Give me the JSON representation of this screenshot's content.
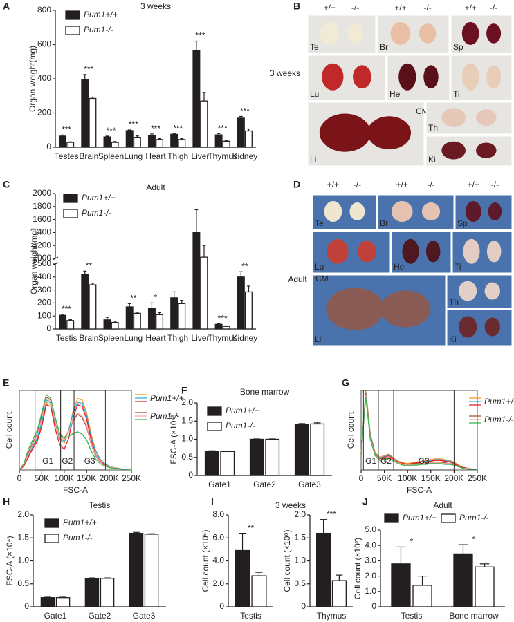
{
  "panel_labels": [
    "A",
    "B",
    "C",
    "D",
    "E",
    "F",
    "G",
    "H",
    "I",
    "J"
  ],
  "photos": [
    {
      "caption": "3 weeks",
      "tiles": [
        {
          "label": "Te",
          "genotypes": [
            "+/+",
            "-/-"
          ]
        },
        {
          "label": "Br",
          "genotypes": [
            "+/+",
            "-/-"
          ]
        },
        {
          "label": "Sp",
          "genotypes": [
            "+/+",
            "-/-"
          ]
        },
        {
          "label": "Lu"
        },
        {
          "label": "He"
        },
        {
          "label": "Ti"
        },
        {
          "label": "Li",
          "ruler": "CM"
        },
        {
          "label": "Th"
        },
        {
          "label": "Ki"
        }
      ]
    },
    {
      "caption": "Adult",
      "tiles": [
        {
          "label": "Te",
          "genotypes": [
            "+/+",
            "-/-"
          ]
        },
        {
          "label": "Br",
          "genotypes": [
            "+/+",
            "-/-"
          ]
        },
        {
          "label": "Sp",
          "genotypes": [
            "+/+",
            "-/-"
          ]
        },
        {
          "label": "Lu"
        },
        {
          "label": "He"
        },
        {
          "label": "Ti"
        },
        {
          "label": "Li",
          "ruler": "CM"
        },
        {
          "label": "Th"
        },
        {
          "label": "Ki"
        }
      ]
    }
  ],
  "chart_data": [
    {
      "type": "bar",
      "title": "3 weeks",
      "y_label": "Organ weight(mg)",
      "categories": [
        "Testes",
        "Brain",
        "Spleen",
        "Lung",
        "Heart",
        "Thigh",
        "Liver",
        "Thymus",
        "Kidney"
      ],
      "series": [
        {
          "name": "Pum1+/+",
          "color": "#231f20",
          "values": [
            65,
            395,
            60,
            97,
            70,
            75,
            565,
            72,
            170
          ],
          "errors": [
            6,
            30,
            5,
            4,
            7,
            5,
            55,
            8,
            10
          ]
        },
        {
          "name": "Pum1-/-",
          "color": "#ffffff",
          "values": [
            28,
            285,
            28,
            58,
            45,
            45,
            270,
            35,
            95
          ],
          "errors": [
            3,
            8,
            5,
            8,
            5,
            5,
            50,
            5,
            12
          ]
        }
      ],
      "annotations": [
        "***",
        "***",
        "***",
        "***",
        "***",
        "***",
        "***",
        "***",
        "***"
      ],
      "ylim": [
        0,
        800
      ],
      "yticks": [
        0,
        200,
        400,
        600,
        800
      ],
      "legend": "upper left"
    },
    {
      "type": "bar",
      "title": "Adult",
      "y_label": "Organ weight(mg)",
      "categories": [
        "Testis",
        "Brain",
        "Spleen",
        "Lung",
        "Heart",
        "Thigh",
        "Liver",
        "Thymus",
        "Kidney"
      ],
      "series": [
        {
          "name": "Pum1+/+",
          "color": "#231f20",
          "values": [
            105,
            420,
            70,
            170,
            160,
            240,
            1400,
            35,
            400
          ],
          "errors": [
            8,
            25,
            20,
            25,
            40,
            45,
            350,
            5,
            40
          ]
        },
        {
          "name": "Pum1-/-",
          "color": "#ffffff",
          "values": [
            65,
            340,
            50,
            120,
            110,
            195,
            1020,
            20,
            285
          ],
          "errors": [
            6,
            12,
            10,
            3,
            15,
            25,
            180,
            4,
            45
          ]
        }
      ],
      "annotations": [
        "***",
        "**",
        null,
        "**",
        "*",
        null,
        null,
        "***",
        "**"
      ],
      "ylim": [
        0,
        2000
      ],
      "ybreak": [
        500,
        1000
      ],
      "yticks": [
        0,
        100,
        200,
        300,
        400,
        500,
        1000,
        1200,
        1400,
        1600,
        1800,
        2000
      ],
      "legend": "upper left"
    },
    {
      "type": "line",
      "x_label": "FSC-A",
      "y_label": "Cell count",
      "x": [
        0,
        10000,
        20000,
        30000,
        40000,
        50000,
        60000,
        70000,
        80000,
        90000,
        100000,
        110000,
        120000,
        130000,
        140000,
        150000,
        160000,
        170000,
        180000,
        190000,
        200000,
        210000,
        220000,
        230000,
        240000,
        250000
      ],
      "series": [
        {
          "name": "Pum1+/+",
          "color": "#f7941d",
          "values": [
            0,
            6,
            18,
            28,
            38,
            58,
            85,
            82,
            58,
            38,
            34,
            50,
            75,
            90,
            88,
            72,
            45,
            25,
            14,
            8,
            5,
            3,
            2,
            1,
            1,
            0
          ]
        },
        {
          "name": "Pum1+/+",
          "color": "#29abe2",
          "values": [
            0,
            6,
            18,
            30,
            40,
            60,
            88,
            84,
            60,
            40,
            36,
            50,
            72,
            85,
            84,
            68,
            42,
            24,
            13,
            8,
            5,
            3,
            2,
            1,
            1,
            0
          ]
        },
        {
          "name": "Pum1+/+",
          "color": "#ed1c24",
          "values": [
            0,
            5,
            16,
            27,
            36,
            55,
            82,
            80,
            52,
            32,
            26,
            40,
            66,
            82,
            80,
            64,
            38,
            20,
            11,
            7,
            4,
            3,
            2,
            1,
            1,
            0
          ]
        },
        {
          "name": "Pum1-/-",
          "color": "#a0522d",
          "values": [
            0,
            7,
            22,
            34,
            46,
            68,
            92,
            88,
            64,
            44,
            40,
            48,
            62,
            70,
            66,
            54,
            33,
            18,
            10,
            6,
            4,
            3,
            2,
            1,
            1,
            0
          ]
        },
        {
          "name": "Pum1-/-",
          "color": "#f4a6a6",
          "values": [
            0,
            7,
            20,
            32,
            44,
            65,
            90,
            86,
            62,
            42,
            38,
            48,
            64,
            72,
            68,
            56,
            34,
            19,
            10,
            6,
            4,
            3,
            2,
            1,
            1,
            0
          ]
        },
        {
          "name": "Pum1-/-",
          "color": "#39b54a",
          "values": [
            0,
            8,
            26,
            38,
            50,
            72,
            95,
            90,
            66,
            46,
            40,
            42,
            46,
            48,
            45,
            38,
            24,
            14,
            8,
            5,
            3,
            2,
            2,
            1,
            1,
            0
          ]
        }
      ],
      "gates": [
        {
          "label": "G1",
          "range": [
            35000,
            92000
          ]
        },
        {
          "label": "G2",
          "range": [
            92000,
            122000
          ]
        },
        {
          "label": "G3",
          "range": [
            122000,
            192000
          ]
        }
      ],
      "xlim": [
        0,
        250000
      ],
      "ylim": [
        0,
        100
      ],
      "xticks": [
        0,
        {
          "value": 50000,
          "label": "50K"
        },
        {
          "value": 100000,
          "label": "100K"
        },
        {
          "value": 150000,
          "label": "150K"
        },
        {
          "value": 200000,
          "label": "200K"
        },
        {
          "value": 250000,
          "label": "250K"
        }
      ],
      "legend": "right"
    },
    {
      "type": "bar",
      "title": "Bone marrow",
      "y_label": "FSC-A (×10⁴)",
      "categories": [
        "Gate1",
        "Gate2",
        "Gate3"
      ],
      "series": [
        {
          "name": "Pum1+/+",
          "color": "#231f20",
          "values": [
            0.66,
            1.0,
            1.4
          ],
          "errors": [
            0.02,
            0.01,
            0.03
          ]
        },
        {
          "name": "Pum1-/-",
          "color": "#ffffff",
          "values": [
            0.66,
            1.0,
            1.42
          ],
          "errors": [
            0.01,
            0.01,
            0.03
          ]
        }
      ],
      "ylim": [
        0,
        2
      ],
      "yticks": [
        0,
        0.5,
        {
          "value": 1,
          "label": "1.0"
        },
        1.5,
        {
          "value": 2,
          "label": "2.0"
        }
      ],
      "legend": "upper left"
    },
    {
      "type": "line",
      "x_label": "FSC-A",
      "y_label": "Cell count",
      "x": [
        0,
        10000,
        20000,
        30000,
        40000,
        50000,
        60000,
        70000,
        80000,
        90000,
        100000,
        110000,
        120000,
        130000,
        140000,
        150000,
        160000,
        170000,
        180000,
        190000,
        200000,
        210000,
        220000,
        230000,
        240000,
        250000
      ],
      "series": [
        {
          "name": "Pum1+/+",
          "color": "#f7941d",
          "values": [
            20,
            100,
            45,
            22,
            16,
            18,
            20,
            15,
            11,
            9,
            8,
            9,
            10,
            11,
            12,
            13,
            14,
            14,
            13,
            12,
            10,
            6,
            3,
            2,
            1,
            1
          ]
        },
        {
          "name": "Pum1+/+",
          "color": "#29abe2",
          "values": [
            20,
            98,
            44,
            21,
            15,
            17,
            19,
            14,
            10,
            8,
            7,
            8,
            9,
            10,
            11,
            12,
            13,
            13,
            12,
            11,
            9,
            5,
            3,
            2,
            1,
            1
          ]
        },
        {
          "name": "Pum1+/+",
          "color": "#ed1c24",
          "values": [
            20,
            96,
            42,
            20,
            14,
            16,
            18,
            13,
            10,
            8,
            7,
            8,
            9,
            10,
            10,
            11,
            12,
            12,
            11,
            10,
            8,
            5,
            3,
            2,
            1,
            1
          ]
        },
        {
          "name": "Pum1-/-",
          "color": "#a0522d",
          "values": [
            20,
            95,
            40,
            19,
            13,
            14,
            16,
            12,
            9,
            7,
            6,
            7,
            8,
            8,
            9,
            9,
            10,
            10,
            9,
            8,
            7,
            4,
            2,
            2,
            1,
            1
          ]
        },
        {
          "name": "Pum1-/-",
          "color": "#f4a6a6",
          "values": [
            20,
            94,
            40,
            19,
            13,
            15,
            17,
            12,
            9,
            7,
            6,
            7,
            7,
            8,
            8,
            9,
            9,
            9,
            8,
            8,
            6,
            4,
            2,
            2,
            1,
            1
          ]
        },
        {
          "name": "Pum1-/-",
          "color": "#39b54a",
          "values": [
            20,
            92,
            38,
            18,
            12,
            13,
            15,
            11,
            8,
            6,
            5,
            6,
            6,
            7,
            7,
            8,
            8,
            8,
            7,
            7,
            6,
            4,
            2,
            1,
            1,
            1
          ]
        }
      ],
      "gates": [
        {
          "label": "G1",
          "range": [
            5000,
            37000
          ]
        },
        {
          "label": "G2",
          "range": [
            37000,
            70000
          ]
        },
        {
          "label": "G3",
          "range": [
            70000,
            200000
          ]
        }
      ],
      "xlim": [
        0,
        250000
      ],
      "ylim": [
        0,
        100
      ],
      "xticks": [
        0,
        {
          "value": 50000,
          "label": "50K"
        },
        {
          "value": 100000,
          "label": "100K"
        },
        {
          "value": 150000,
          "label": "150K"
        },
        {
          "value": 200000,
          "label": "200K"
        },
        {
          "value": 250000,
          "label": "250K"
        }
      ],
      "legend": "right"
    },
    {
      "type": "bar",
      "title": "Testis",
      "y_label": "FSC-A (×10⁴)",
      "categories": [
        "Gate1",
        "Gate2",
        "Gate3"
      ],
      "series": [
        {
          "name": "Pum1+/+",
          "color": "#231f20",
          "values": [
            0.2,
            0.62,
            1.6
          ],
          "errors": [
            0.01,
            0.01,
            0.02
          ]
        },
        {
          "name": "Pum1-/-",
          "color": "#ffffff",
          "values": [
            0.2,
            0.62,
            1.58
          ],
          "errors": [
            0.01,
            0.01,
            0.01
          ]
        }
      ],
      "ylim": [
        0,
        2
      ],
      "yticks": [
        0,
        0.5,
        {
          "value": 1,
          "label": "1.0"
        },
        1.5,
        {
          "value": 2,
          "label": "2.0"
        }
      ],
      "legend": "upper left"
    },
    {
      "type": "bar",
      "title": "3 weeks",
      "y_label": "Cell count (×10⁶)",
      "categories": [
        "Testis"
      ],
      "series": [
        {
          "color": "#231f20",
          "values": [
            4.9
          ],
          "errors": [
            1.5
          ]
        },
        {
          "color": "#ffffff",
          "values": [
            2.7
          ],
          "errors": [
            0.3
          ]
        }
      ],
      "annotations": [
        "**"
      ],
      "ylim": [
        0,
        8
      ],
      "yticks": [
        0,
        {
          "value": 2,
          "label": "2.0"
        },
        {
          "value": 4,
          "label": "4.0"
        },
        {
          "value": 6,
          "label": "6.0"
        },
        {
          "value": 8,
          "label": "8.0"
        }
      ]
    },
    {
      "type": "bar",
      "y_label": "Cell count (×10⁸)",
      "categories": [
        "Thymus"
      ],
      "series": [
        {
          "color": "#231f20",
          "values": [
            1.6
          ],
          "errors": [
            0.3
          ]
        },
        {
          "color": "#ffffff",
          "values": [
            0.57
          ],
          "errors": [
            0.12
          ]
        }
      ],
      "annotations": [
        "***"
      ],
      "ylim": [
        0,
        2
      ],
      "yticks": [
        0,
        0.5,
        {
          "value": 1,
          "label": "1.0"
        },
        1.5,
        {
          "value": 2,
          "label": "2.0"
        }
      ]
    },
    {
      "type": "bar",
      "title": "Adult",
      "y_label": "Cell count (×10⁷)",
      "categories": [
        "Testis",
        "Bone marrow"
      ],
      "series": [
        {
          "name": "Pum1+/+",
          "color": "#231f20",
          "values": [
            2.8,
            3.45
          ],
          "errors": [
            1.1,
            0.6
          ]
        },
        {
          "name": "Pum1-/-",
          "color": "#ffffff",
          "values": [
            1.4,
            2.6
          ],
          "errors": [
            0.6,
            0.2
          ]
        }
      ],
      "annotations": [
        "*",
        "*"
      ],
      "ylim": [
        0,
        5
      ],
      "yticks": [
        0,
        {
          "value": 1,
          "label": "1.0"
        },
        {
          "value": 2,
          "label": "2.0"
        },
        {
          "value": 3,
          "label": "3.0"
        },
        {
          "value": 4,
          "label": "4.0"
        },
        {
          "value": 5,
          "label": "5.0"
        }
      ],
      "legend": "top"
    }
  ]
}
